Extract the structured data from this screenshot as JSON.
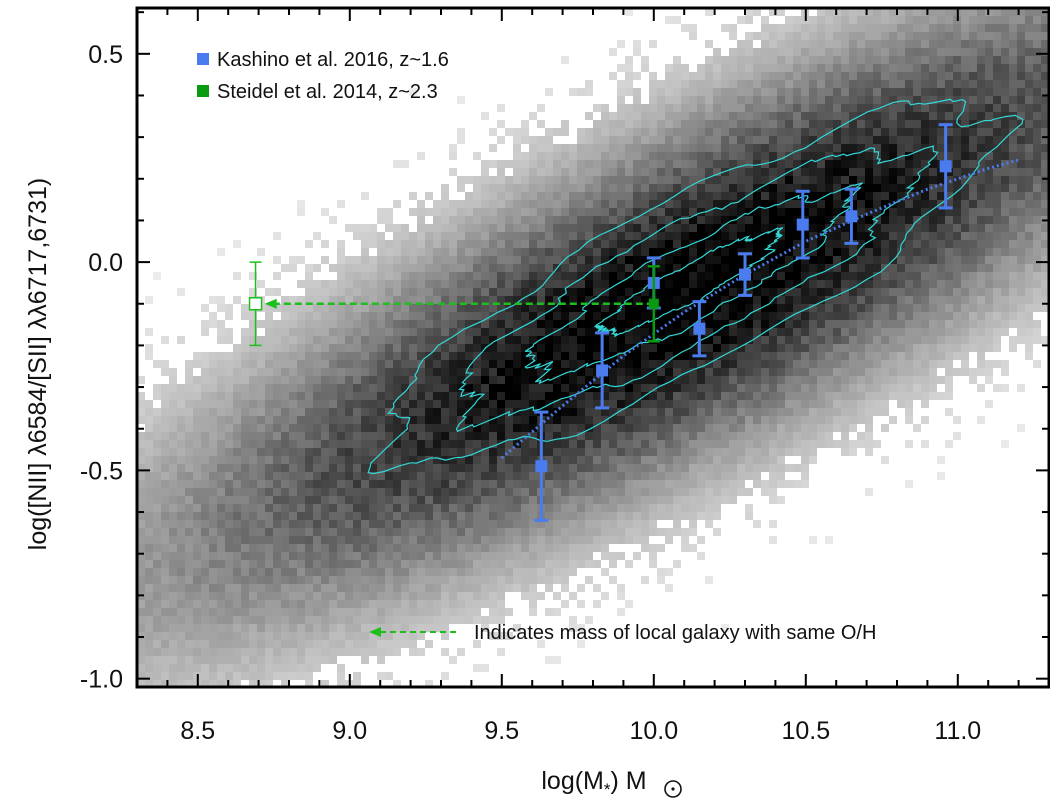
{
  "chart_data": {
    "type": "scatter",
    "xlabel": "log(M",
    "xlabel_sub": "*",
    "xlabel_unit": ") M",
    "ylabel": "log([NII] λ6584/[SII] λλ6717,6731)",
    "xlim": [
      8.3,
      11.3
    ],
    "ylim": [
      -1.02,
      0.61
    ],
    "x_ticks": [
      8.5,
      9.0,
      9.5,
      10.0,
      10.5,
      11.0
    ],
    "x_tick_labels": [
      "8.5",
      "9.0",
      "9.5",
      "10.0",
      "10.5",
      "11.0"
    ],
    "y_ticks": [
      0.5,
      0.0,
      -0.5,
      -1.0
    ],
    "y_tick_labels": [
      "0.5",
      "0.0",
      "-0.5",
      "-1.0"
    ],
    "legend": {
      "placement": "top-left"
    },
    "colors": {
      "kashino": "#4a7cf0",
      "steidel": "#0a9a10",
      "contour": "#32d8d8",
      "fit": "#4a7cf0",
      "arrow": "#1cbf1c"
    },
    "series": [
      {
        "name": "Kashino et al. 2016, z~1.6",
        "marker": "filled-square",
        "points": [
          {
            "x": 9.63,
            "y": -0.49,
            "err": 0.13
          },
          {
            "x": 9.83,
            "y": -0.26,
            "err": 0.09
          },
          {
            "x": 10.0,
            "y": -0.05,
            "err": 0.06
          },
          {
            "x": 10.15,
            "y": -0.16,
            "err": 0.065
          },
          {
            "x": 10.3,
            "y": -0.03,
            "err": 0.05
          },
          {
            "x": 10.49,
            "y": 0.09,
            "err": 0.08
          },
          {
            "x": 10.65,
            "y": 0.11,
            "err": 0.065
          },
          {
            "x": 10.96,
            "y": 0.23,
            "err": 0.1
          }
        ]
      },
      {
        "name": "Steidel et al. 2014, z~2.3",
        "marker": "filled-square",
        "points": [
          {
            "x": 10.0,
            "y": -0.1,
            "err": 0.09
          }
        ]
      }
    ],
    "local_mass_marker": {
      "x": 8.69,
      "y": -0.1,
      "err": 0.1,
      "marker": "open-square"
    },
    "arrow": {
      "from_x": 10.0,
      "to_x": 8.72,
      "y": -0.1
    },
    "fit_line": {
      "x": [
        9.5,
        9.7,
        9.9,
        10.1,
        10.3,
        10.5,
        10.7,
        10.9,
        11.1,
        11.2
      ],
      "y": [
        -0.47,
        -0.345,
        -0.225,
        -0.12,
        -0.03,
        0.05,
        0.115,
        0.175,
        0.225,
        0.245
      ]
    },
    "annotations": [
      {
        "text": "Indicates mass of local galaxy with same O/H"
      }
    ],
    "background": "2D density of local SDSS galaxies (grayscale) with cyan density contours"
  }
}
